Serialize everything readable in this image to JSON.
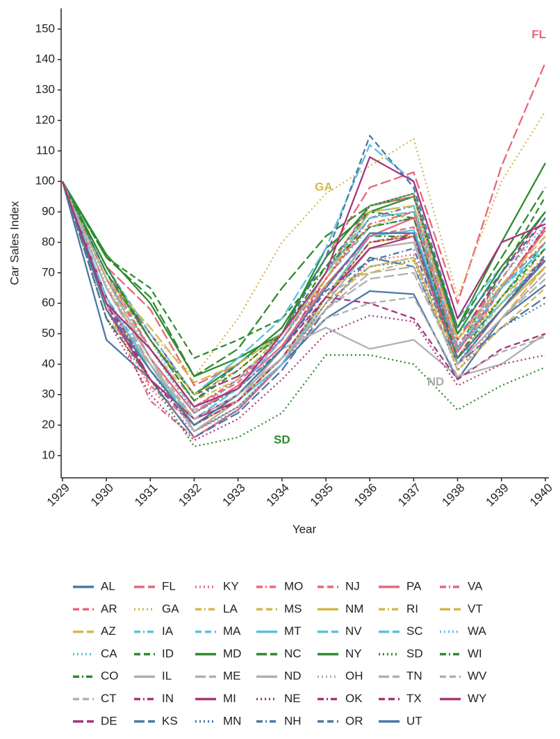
{
  "chart_data": {
    "type": "line",
    "x_label": "Year",
    "y_label": "Car Sales Index",
    "x": [
      1929,
      1930,
      1931,
      1932,
      1933,
      1934,
      1935,
      1936,
      1937,
      1938,
      1939,
      1940
    ],
    "xlim": [
      1928.97,
      1940.08
    ],
    "xticks": [
      1929,
      1930,
      1931,
      1932,
      1933,
      1934,
      1935,
      1936,
      1937,
      1938,
      1939,
      1940
    ],
    "ylim": [
      2.7,
      156.8
    ],
    "yticks": [
      10,
      20,
      30,
      40,
      50,
      60,
      70,
      80,
      90,
      100,
      110,
      120,
      130,
      140,
      150
    ],
    "annotations": [
      {
        "text": "FL",
        "color": "#e8667a",
        "x": 1939.85,
        "y": 148
      },
      {
        "text": "GA",
        "color": "#d4b84a",
        "x": 1934.95,
        "y": 98
      },
      {
        "text": "ND",
        "color": "#aaaaaa",
        "x": 1937.5,
        "y": 34
      },
      {
        "text": "SD",
        "color": "#2e8b2e",
        "x": 1934.0,
        "y": 15
      }
    ],
    "series": [
      {
        "name": "AL",
        "color": "#4a78a8",
        "linestyle": "solid",
        "values": [
          100,
          48,
          35,
          16,
          25,
          40,
          55,
          64,
          63,
          35,
          55,
          66
        ]
      },
      {
        "name": "AR",
        "color": "#e8667a",
        "linestyle": "dashed",
        "values": [
          100,
          60,
          33,
          20,
          28,
          45,
          65,
          82,
          85,
          42,
          65,
          85
        ]
      },
      {
        "name": "AZ",
        "color": "#d4b84a",
        "linestyle": "longdash",
        "values": [
          100,
          55,
          40,
          22,
          30,
          42,
          62,
          78,
          80,
          40,
          55,
          72
        ]
      },
      {
        "name": "CA",
        "color": "#5bc0de",
        "linestyle": "dotted",
        "values": [
          100,
          70,
          48,
          24,
          35,
          50,
          70,
          88,
          90,
          50,
          65,
          78
        ]
      },
      {
        "name": "CO",
        "color": "#2e8b2e",
        "linestyle": "dashdot",
        "values": [
          100,
          62,
          40,
          18,
          28,
          42,
          62,
          82,
          82,
          45,
          62,
          80
        ]
      },
      {
        "name": "CT",
        "color": "#b0b0b0",
        "linestyle": "dashed",
        "values": [
          100,
          68,
          45,
          25,
          32,
          45,
          62,
          72,
          75,
          45,
          60,
          75
        ]
      },
      {
        "name": "DE",
        "color": "#a8357a",
        "linestyle": "longdash",
        "values": [
          100,
          70,
          50,
          30,
          36,
          48,
          70,
          92,
          95,
          48,
          70,
          90
        ]
      },
      {
        "name": "FL",
        "color": "#e8667a",
        "linestyle": "longdash",
        "values": [
          100,
          72,
          58,
          33,
          40,
          52,
          75,
          98,
          103,
          60,
          105,
          139
        ]
      },
      {
        "name": "GA",
        "color": "#d4b84a",
        "linestyle": "dotted",
        "values": [
          100,
          72,
          50,
          36,
          55,
          80,
          96,
          105,
          114,
          62,
          100,
          123
        ]
      },
      {
        "name": "IA",
        "color": "#5bc0de",
        "linestyle": "dashdot",
        "values": [
          100,
          62,
          40,
          22,
          30,
          45,
          68,
          85,
          88,
          40,
          62,
          80
        ]
      },
      {
        "name": "ID",
        "color": "#2e8b2e",
        "linestyle": "dashed",
        "values": [
          100,
          75,
          65,
          42,
          48,
          55,
          72,
          90,
          88,
          45,
          70,
          95
        ]
      },
      {
        "name": "IL",
        "color": "#b0b0b0",
        "linestyle": "solid",
        "values": [
          100,
          68,
          42,
          18,
          26,
          40,
          60,
          78,
          80,
          42,
          58,
          72
        ]
      },
      {
        "name": "IN",
        "color": "#a8357a",
        "linestyle": "dashdot",
        "values": [
          100,
          60,
          38,
          20,
          30,
          45,
          68,
          88,
          92,
          45,
          65,
          85
        ]
      },
      {
        "name": "KS",
        "color": "#4a78a8",
        "linestyle": "longdash",
        "values": [
          100,
          55,
          35,
          16,
          24,
          38,
          58,
          75,
          72,
          40,
          52,
          62
        ]
      },
      {
        "name": "KY",
        "color": "#e8667a",
        "linestyle": "dotted",
        "values": [
          100,
          58,
          32,
          18,
          25,
          40,
          58,
          74,
          76,
          38,
          55,
          70
        ]
      },
      {
        "name": "LA",
        "color": "#d4b84a",
        "linestyle": "dashdot",
        "values": [
          100,
          65,
          45,
          28,
          35,
          50,
          70,
          85,
          90,
          45,
          62,
          75
        ]
      },
      {
        "name": "MA",
        "color": "#5bc0de",
        "linestyle": "dashed",
        "values": [
          100,
          72,
          50,
          30,
          42,
          48,
          70,
          90,
          92,
          50,
          65,
          78
        ]
      },
      {
        "name": "MD",
        "color": "#2e8b2e",
        "linestyle": "solid",
        "values": [
          100,
          76,
          60,
          36,
          42,
          50,
          78,
          90,
          95,
          52,
          80,
          106
        ]
      },
      {
        "name": "ME",
        "color": "#b0b0b0",
        "linestyle": "longdash",
        "values": [
          100,
          65,
          40,
          20,
          28,
          42,
          58,
          70,
          72,
          40,
          55,
          68
        ]
      },
      {
        "name": "MI",
        "color": "#a8357a",
        "linestyle": "solid",
        "values": [
          100,
          58,
          35,
          22,
          28,
          42,
          62,
          78,
          82,
          40,
          58,
          72
        ]
      },
      {
        "name": "MN",
        "color": "#4a78a8",
        "linestyle": "dotted",
        "values": [
          100,
          60,
          38,
          18,
          26,
          40,
          60,
          72,
          74,
          38,
          52,
          60
        ]
      },
      {
        "name": "MO",
        "color": "#e8667a",
        "linestyle": "dashdot",
        "values": [
          100,
          60,
          28,
          16,
          25,
          40,
          62,
          80,
          83,
          40,
          58,
          75
        ]
      },
      {
        "name": "MS",
        "color": "#d4b84a",
        "linestyle": "dashed",
        "values": [
          100,
          62,
          35,
          22,
          30,
          42,
          60,
          72,
          75,
          38,
          52,
          65
        ]
      },
      {
        "name": "MT",
        "color": "#5bc0de",
        "linestyle": "solid",
        "values": [
          100,
          62,
          38,
          20,
          28,
          40,
          62,
          82,
          84,
          45,
          60,
          74
        ]
      },
      {
        "name": "NC",
        "color": "#2e8b2e",
        "linestyle": "longdash",
        "values": [
          100,
          75,
          62,
          36,
          45,
          65,
          82,
          92,
          95,
          52,
          75,
          98
        ]
      },
      {
        "name": "ND",
        "color": "#b0b0b0",
        "linestyle": "solid",
        "values": [
          100,
          60,
          40,
          18,
          28,
          45,
          52,
          45,
          48,
          36,
          40,
          50
        ]
      },
      {
        "name": "NE",
        "color": "#a8357a",
        "linestyle": "dotted",
        "values": [
          100,
          55,
          30,
          15,
          22,
          35,
          50,
          56,
          54,
          33,
          40,
          43
        ]
      },
      {
        "name": "NH",
        "color": "#4a78a8",
        "linestyle": "dashdot",
        "values": [
          100,
          65,
          42,
          24,
          32,
          45,
          64,
          74,
          78,
          40,
          58,
          76
        ]
      },
      {
        "name": "NJ",
        "color": "#e8667a",
        "linestyle": "dashed",
        "values": [
          100,
          70,
          45,
          26,
          34,
          48,
          70,
          92,
          95,
          48,
          68,
          88
        ]
      },
      {
        "name": "NM",
        "color": "#d4b84a",
        "linestyle": "solid",
        "values": [
          100,
          58,
          38,
          20,
          28,
          42,
          62,
          80,
          82,
          42,
          58,
          72
        ]
      },
      {
        "name": "NV",
        "color": "#5bc0de",
        "linestyle": "longdash",
        "values": [
          100,
          70,
          48,
          30,
          42,
          55,
          78,
          112,
          100,
          55,
          72,
          90
        ]
      },
      {
        "name": "NY",
        "color": "#2e8b2e",
        "linestyle": "solid",
        "values": [
          100,
          72,
          48,
          30,
          40,
          52,
          75,
          92,
          96,
          50,
          72,
          90
        ]
      },
      {
        "name": "OH",
        "color": "#b0b0b0",
        "linestyle": "dotted",
        "values": [
          100,
          66,
          45,
          26,
          35,
          48,
          70,
          92,
          96,
          46,
          68,
          86
        ]
      },
      {
        "name": "OK",
        "color": "#a8357a",
        "linestyle": "dashdot",
        "values": [
          100,
          62,
          35,
          20,
          28,
          42,
          62,
          80,
          82,
          42,
          58,
          75
        ]
      },
      {
        "name": "OR",
        "color": "#4a78a8",
        "linestyle": "dashed",
        "values": [
          100,
          70,
          48,
          28,
          40,
          50,
          75,
          115,
          98,
          52,
          70,
          88
        ]
      },
      {
        "name": "PA",
        "color": "#e8667a",
        "linestyle": "solid",
        "values": [
          100,
          65,
          42,
          24,
          33,
          46,
          66,
          82,
          88,
          44,
          65,
          84
        ]
      },
      {
        "name": "RI",
        "color": "#d4b84a",
        "linestyle": "dashdot",
        "values": [
          100,
          68,
          48,
          30,
          38,
          50,
          66,
          70,
          74,
          42,
          60,
          78
        ]
      },
      {
        "name": "SC",
        "color": "#5bc0de",
        "linestyle": "longdash",
        "values": [
          100,
          62,
          38,
          22,
          32,
          48,
          70,
          88,
          90,
          45,
          65,
          80
        ]
      },
      {
        "name": "SD",
        "color": "#2e8b2e",
        "linestyle": "dotted",
        "values": [
          100,
          55,
          35,
          13,
          16,
          24,
          43,
          43,
          40,
          25,
          33,
          39
        ]
      },
      {
        "name": "TN",
        "color": "#b0b0b0",
        "linestyle": "longdash",
        "values": [
          100,
          65,
          40,
          22,
          30,
          42,
          58,
          68,
          70,
          40,
          55,
          70
        ]
      },
      {
        "name": "TX",
        "color": "#a8357a",
        "linestyle": "dashed",
        "values": [
          100,
          60,
          35,
          22,
          30,
          45,
          62,
          60,
          55,
          35,
          45,
          50
        ]
      },
      {
        "name": "UT",
        "color": "#4a78a8",
        "linestyle": "solid",
        "values": [
          100,
          58,
          38,
          20,
          30,
          45,
          65,
          83,
          83,
          42,
          58,
          74
        ]
      },
      {
        "name": "VA",
        "color": "#e8667a",
        "linestyle": "dashdot",
        "values": [
          100,
          68,
          45,
          26,
          35,
          48,
          68,
          86,
          90,
          46,
          66,
          80
        ]
      },
      {
        "name": "VT",
        "color": "#d4b84a",
        "linestyle": "longdash",
        "values": [
          100,
          68,
          52,
          34,
          40,
          50,
          68,
          90,
          92,
          48,
          66,
          82
        ]
      },
      {
        "name": "WA",
        "color": "#5bc0de",
        "linestyle": "dotted",
        "values": [
          100,
          68,
          45,
          24,
          35,
          48,
          70,
          88,
          92,
          45,
          68,
          86
        ]
      },
      {
        "name": "WI",
        "color": "#2e8b2e",
        "linestyle": "dashdot",
        "values": [
          100,
          70,
          48,
          28,
          38,
          50,
          72,
          85,
          88,
          42,
          62,
          78
        ]
      },
      {
        "name": "WV",
        "color": "#b0b0b0",
        "linestyle": "dashed",
        "values": [
          100,
          65,
          42,
          22,
          30,
          42,
          55,
          60,
          62,
          36,
          44,
          49
        ]
      },
      {
        "name": "WY",
        "color": "#a8357a",
        "linestyle": "solid",
        "values": [
          100,
          60,
          45,
          26,
          32,
          50,
          70,
          108,
          100,
          55,
          80,
          86
        ]
      }
    ]
  }
}
